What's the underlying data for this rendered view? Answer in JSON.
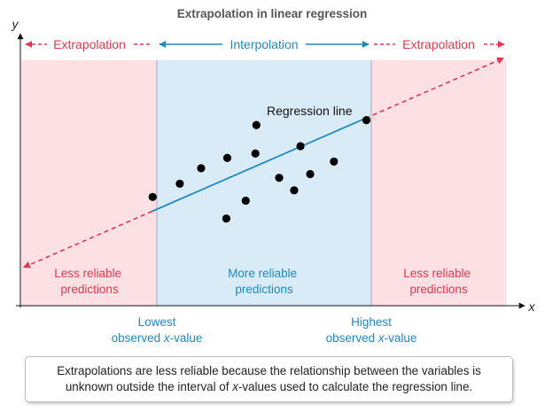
{
  "title": "Extrapolation in linear regression",
  "axes": {
    "x_label": "x",
    "y_label": "y"
  },
  "regions": {
    "left": {
      "label": "Extrapolation",
      "note": [
        "Less reliable",
        "predictions"
      ]
    },
    "middle": {
      "label": "Interpolation",
      "note": [
        "More reliable",
        "predictions"
      ]
    },
    "right": {
      "label": "Extrapolation",
      "note": [
        "Less reliable",
        "predictions"
      ]
    }
  },
  "regression_label": "Regression line",
  "boundaries": {
    "lowest": {
      "line1": "Lowest",
      "line2_prefix": "observed ",
      "line2_var": "x",
      "line2_suffix": "-value"
    },
    "highest": {
      "line1": "Highest",
      "line2_prefix": "observed ",
      "line2_var": "x",
      "line2_suffix": "-value"
    }
  },
  "caption": {
    "line1": "Extrapolations are less reliable because the relationship between the variables is",
    "line2_prefix": "unknown outside the interval of ",
    "line2_var": "x",
    "line2_suffix": "-values used to calculate the regression line."
  },
  "chart_data": {
    "type": "scatter",
    "x_range": [
      0,
      100
    ],
    "y_range": [
      0,
      100
    ],
    "observed_x_range": [
      27,
      71
    ],
    "points": [
      {
        "x": 27.1,
        "y": 44.3
      },
      {
        "x": 32.7,
        "y": 49.7
      },
      {
        "x": 37.1,
        "y": 56.0
      },
      {
        "x": 42.3,
        "y": 35.5
      },
      {
        "x": 42.5,
        "y": 60.2
      },
      {
        "x": 46.3,
        "y": 42.8
      },
      {
        "x": 48.3,
        "y": 62.0
      },
      {
        "x": 48.5,
        "y": 73.6
      },
      {
        "x": 53.2,
        "y": 52.1
      },
      {
        "x": 56.3,
        "y": 47.0
      },
      {
        "x": 57.6,
        "y": 65.0
      },
      {
        "x": 59.6,
        "y": 53.6
      },
      {
        "x": 64.5,
        "y": 58.7
      },
      {
        "x": 71.2,
        "y": 75.6
      }
    ],
    "regression_line": {
      "intercept": 15.2,
      "slope": 0.861
    },
    "extrapolated_range": [
      0.5,
      99.5
    ],
    "colors": {
      "extrapolation_region": "#fde0e4",
      "interpolation_region": "#d9ebf6",
      "extrapolation_text": "#e0384e",
      "interpolation_text": "#1f8ac0",
      "regression_line": "#1f8ac0",
      "dashed_line": "#e0384e",
      "points": "#000000"
    }
  }
}
